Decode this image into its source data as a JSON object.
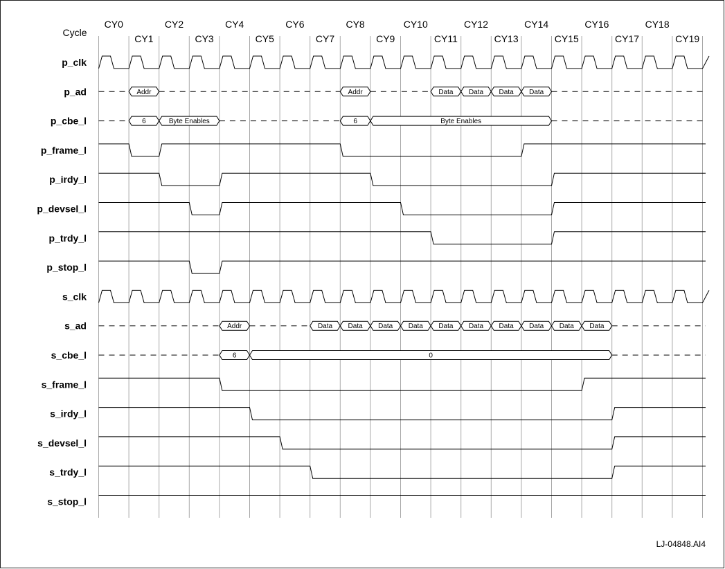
{
  "cycle_header": "Cycle",
  "cycles": [
    "CY0",
    "CY1",
    "CY2",
    "CY3",
    "CY4",
    "CY5",
    "CY6",
    "CY7",
    "CY8",
    "CY9",
    "CY10",
    "CY11",
    "CY12",
    "CY13",
    "CY14",
    "CY15",
    "CY16",
    "CY17",
    "CY18",
    "CY19"
  ],
  "figure_id": "LJ-04848.AI4",
  "signals": [
    {
      "name": "p_clk",
      "kind": "clock"
    },
    {
      "name": "p_ad",
      "kind": "bus",
      "segments": [
        {
          "from": 1,
          "to": 2,
          "label": "Addr"
        },
        {
          "from": 8,
          "to": 9,
          "label": "Addr"
        },
        {
          "from": 11,
          "to": 12,
          "label": "Data"
        },
        {
          "from": 12,
          "to": 13,
          "label": "Data"
        },
        {
          "from": 13,
          "to": 14,
          "label": "Data"
        },
        {
          "from": 14,
          "to": 15,
          "label": "Data"
        }
      ]
    },
    {
      "name": "p_cbe_l",
      "kind": "bus",
      "segments": [
        {
          "from": 1,
          "to": 2,
          "label": "6"
        },
        {
          "from": 2,
          "to": 4,
          "label": "Byte Enables"
        },
        {
          "from": 8,
          "to": 9,
          "label": "6"
        },
        {
          "from": 9,
          "to": 15,
          "label": "Byte Enables"
        }
      ]
    },
    {
      "name": "p_frame_l",
      "kind": "level",
      "lows": [
        [
          1,
          2
        ],
        [
          8,
          14
        ]
      ]
    },
    {
      "name": "p_irdy_l",
      "kind": "level",
      "lows": [
        [
          2,
          4
        ],
        [
          9,
          15
        ]
      ]
    },
    {
      "name": "p_devsel_l",
      "kind": "level",
      "lows": [
        [
          3,
          4
        ],
        [
          10,
          15
        ]
      ]
    },
    {
      "name": "p_trdy_l",
      "kind": "level",
      "lows": [
        [
          11,
          15
        ]
      ]
    },
    {
      "name": "p_stop_l",
      "kind": "level",
      "lows": [
        [
          3,
          4
        ]
      ]
    },
    {
      "name": "s_clk",
      "kind": "clock"
    },
    {
      "name": "s_ad",
      "kind": "bus",
      "segments": [
        {
          "from": 4,
          "to": 5,
          "label": "Addr"
        },
        {
          "from": 7,
          "to": 8,
          "label": "Data"
        },
        {
          "from": 8,
          "to": 9,
          "label": "Data"
        },
        {
          "from": 9,
          "to": 10,
          "label": "Data"
        },
        {
          "from": 10,
          "to": 11,
          "label": "Data"
        },
        {
          "from": 11,
          "to": 12,
          "label": "Data"
        },
        {
          "from": 12,
          "to": 13,
          "label": "Data"
        },
        {
          "from": 13,
          "to": 14,
          "label": "Data"
        },
        {
          "from": 14,
          "to": 15,
          "label": "Data"
        },
        {
          "from": 15,
          "to": 16,
          "label": "Data"
        },
        {
          "from": 16,
          "to": 17,
          "label": "Data"
        }
      ]
    },
    {
      "name": "s_cbe_l",
      "kind": "bus",
      "segments": [
        {
          "from": 4,
          "to": 5,
          "label": "6"
        },
        {
          "from": 5,
          "to": 17,
          "label": "0"
        }
      ]
    },
    {
      "name": "s_frame_l",
      "kind": "level",
      "lows": [
        [
          4,
          16
        ]
      ]
    },
    {
      "name": "s_irdy_l",
      "kind": "level",
      "lows": [
        [
          5,
          17
        ]
      ]
    },
    {
      "name": "s_devsel_l",
      "kind": "level",
      "lows": [
        [
          6,
          17
        ]
      ]
    },
    {
      "name": "s_trdy_l",
      "kind": "level",
      "lows": [
        [
          7,
          17
        ]
      ]
    },
    {
      "name": "s_stop_l",
      "kind": "level",
      "lows": []
    }
  ]
}
